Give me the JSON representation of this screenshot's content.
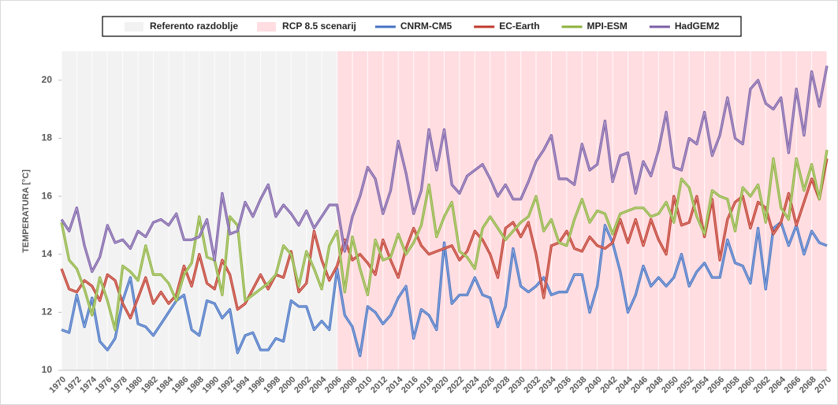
{
  "chart_data": {
    "type": "line",
    "y_label": "TEMPERATURA [°C]",
    "regions": [
      {
        "name": "Referento razdoblje",
        "color": "#f2f2f2",
        "start": 1970,
        "end": 2006
      },
      {
        "name": "RCP 8.5 scenarij",
        "color": "#ffdde1",
        "start": 2006,
        "end": 2070
      }
    ],
    "x": [
      1970,
      1971,
      1972,
      1973,
      1974,
      1975,
      1976,
      1977,
      1978,
      1979,
      1980,
      1981,
      1982,
      1983,
      1984,
      1985,
      1986,
      1987,
      1988,
      1989,
      1990,
      1991,
      1992,
      1993,
      1994,
      1995,
      1996,
      1997,
      1998,
      1999,
      2000,
      2001,
      2002,
      2003,
      2004,
      2005,
      2006,
      2007,
      2008,
      2009,
      2010,
      2011,
      2012,
      2013,
      2014,
      2015,
      2016,
      2017,
      2018,
      2019,
      2020,
      2021,
      2022,
      2023,
      2024,
      2025,
      2026,
      2027,
      2028,
      2029,
      2030,
      2031,
      2032,
      2033,
      2034,
      2035,
      2036,
      2037,
      2038,
      2039,
      2040,
      2041,
      2042,
      2043,
      2044,
      2045,
      2046,
      2047,
      2048,
      2049,
      2050,
      2051,
      2052,
      2053,
      2054,
      2055,
      2056,
      2057,
      2058,
      2059,
      2060,
      2061,
      2062,
      2063,
      2064,
      2065,
      2066,
      2067,
      2068,
      2069,
      2070
    ],
    "series": [
      {
        "name": "CNRM-CM5",
        "color": "#4472c4",
        "values": [
          11.4,
          11.3,
          12.6,
          11.5,
          12.5,
          11.0,
          10.7,
          11.1,
          12.4,
          13.2,
          11.6,
          11.5,
          11.2,
          11.6,
          12.0,
          12.4,
          12.6,
          11.4,
          11.2,
          12.4,
          12.3,
          11.8,
          12.1,
          10.6,
          11.2,
          11.3,
          10.7,
          10.7,
          11.1,
          11.0,
          12.4,
          12.2,
          12.2,
          11.4,
          11.7,
          11.4,
          13.5,
          11.9,
          11.5,
          10.5,
          12.2,
          12.0,
          11.6,
          11.9,
          12.5,
          12.9,
          11.1,
          12.1,
          11.9,
          11.4,
          14.4,
          12.3,
          12.6,
          12.6,
          13.2,
          12.6,
          12.5,
          11.5,
          12.2,
          14.2,
          12.9,
          12.7,
          12.9,
          13.2,
          12.6,
          12.7,
          12.7,
          13.3,
          13.3,
          12.0,
          12.9,
          15.0,
          14.4,
          13.4,
          12.0,
          12.6,
          13.6,
          12.9,
          13.2,
          12.9,
          13.2,
          14.0,
          12.9,
          13.4,
          13.7,
          13.2,
          13.2,
          14.5,
          13.7,
          13.6,
          13.0,
          14.9,
          12.8,
          14.9,
          15.1,
          14.3,
          15.0,
          14.0,
          14.8,
          14.4,
          14.3
        ]
      },
      {
        "name": "EC-Earth",
        "color": "#c0392b",
        "values": [
          13.5,
          12.8,
          12.7,
          13.1,
          12.9,
          12.4,
          13.3,
          13.1,
          12.3,
          11.8,
          12.5,
          13.2,
          12.3,
          12.7,
          12.3,
          12.6,
          13.6,
          12.9,
          14.0,
          13.0,
          12.8,
          13.8,
          13.3,
          12.1,
          12.3,
          12.8,
          13.3,
          12.8,
          13.3,
          13.2,
          14.1,
          12.7,
          13.0,
          14.8,
          13.8,
          13.1,
          13.6,
          14.5,
          13.8,
          14.0,
          13.7,
          13.3,
          14.5,
          13.8,
          13.2,
          14.2,
          14.9,
          14.3,
          14.0,
          14.1,
          14.2,
          14.3,
          13.8,
          14.1,
          14.8,
          14.5,
          14.0,
          13.2,
          14.9,
          15.1,
          14.6,
          15.1,
          14.0,
          12.5,
          14.3,
          14.4,
          14.8,
          14.2,
          14.1,
          14.6,
          14.3,
          14.2,
          14.4,
          15.2,
          14.4,
          15.2,
          14.3,
          15.2,
          14.5,
          14.0,
          16.0,
          15.0,
          15.1,
          16.0,
          14.6,
          15.9,
          13.8,
          15.2,
          15.8,
          16.0,
          14.9,
          15.8,
          15.6,
          14.7,
          15.1,
          16.1,
          15.0,
          15.8,
          16.6,
          15.9,
          17.3
        ]
      },
      {
        "name": "MPI-ESM",
        "color": "#8db23c",
        "values": [
          15.1,
          13.8,
          13.5,
          12.8,
          11.9,
          13.2,
          12.4,
          11.4,
          13.6,
          13.4,
          13.1,
          14.3,
          13.3,
          13.3,
          13.0,
          12.4,
          13.3,
          13.7,
          15.3,
          13.9,
          13.8,
          12.6,
          15.3,
          15.0,
          12.4,
          12.6,
          12.8,
          13.0,
          13.3,
          14.3,
          14.0,
          12.9,
          14.1,
          13.5,
          12.8,
          14.3,
          14.8,
          12.7,
          14.6,
          13.5,
          12.6,
          14.5,
          13.8,
          13.9,
          14.7,
          14.0,
          14.4,
          15.0,
          16.4,
          14.6,
          15.3,
          15.8,
          14.1,
          13.9,
          13.5,
          14.9,
          15.3,
          14.9,
          14.5,
          14.8,
          15.1,
          15.3,
          16.0,
          14.8,
          15.2,
          14.4,
          14.3,
          15.2,
          15.9,
          15.1,
          15.5,
          15.4,
          14.7,
          15.4,
          15.5,
          15.6,
          15.6,
          15.3,
          15.4,
          15.8,
          15.1,
          16.6,
          16.3,
          15.3,
          14.7,
          16.2,
          16.0,
          15.9,
          14.8,
          16.3,
          16.0,
          16.4,
          15.1,
          17.3,
          15.6,
          15.2,
          17.3,
          16.2,
          17.1,
          15.9,
          17.6
        ]
      },
      {
        "name": "HadGEM2",
        "color": "#7b5ea7",
        "values": [
          15.2,
          14.8,
          15.6,
          14.3,
          13.4,
          13.9,
          15.0,
          14.4,
          14.5,
          14.2,
          14.8,
          14.6,
          15.1,
          15.2,
          15.0,
          15.4,
          14.5,
          14.5,
          14.6,
          15.2,
          13.8,
          16.1,
          14.7,
          14.8,
          15.8,
          15.3,
          15.9,
          16.4,
          15.3,
          15.7,
          15.4,
          15.0,
          15.5,
          14.9,
          15.3,
          15.7,
          15.7,
          14.1,
          15.3,
          16.0,
          17.0,
          16.6,
          15.4,
          16.2,
          17.9,
          16.8,
          15.4,
          16.2,
          18.3,
          16.9,
          18.3,
          16.4,
          16.1,
          16.7,
          16.9,
          17.1,
          16.6,
          16.0,
          16.4,
          15.9,
          15.9,
          16.5,
          17.2,
          17.6,
          18.1,
          16.6,
          16.6,
          16.4,
          17.8,
          16.9,
          17.1,
          18.6,
          16.5,
          17.4,
          17.5,
          16.1,
          17.2,
          16.7,
          17.6,
          18.9,
          17.0,
          16.9,
          18.0,
          17.8,
          18.9,
          17.4,
          18.1,
          19.4,
          18.0,
          17.8,
          19.7,
          20.0,
          19.2,
          19.0,
          19.4,
          17.5,
          19.7,
          18.1,
          20.3,
          19.1,
          20.5
        ]
      }
    ],
    "xlim": [
      1970,
      2070
    ],
    "xticks": [
      1970,
      1972,
      1974,
      1976,
      1978,
      1980,
      1982,
      1984,
      1986,
      1988,
      1990,
      1992,
      1994,
      1996,
      1998,
      2000,
      2002,
      2004,
      2006,
      2008,
      2010,
      2012,
      2014,
      2016,
      2018,
      2020,
      2022,
      2024,
      2026,
      2028,
      2030,
      2032,
      2034,
      2036,
      2038,
      2040,
      2042,
      2044,
      2046,
      2048,
      2050,
      2052,
      2054,
      2056,
      2058,
      2060,
      2062,
      2064,
      2066,
      2068,
      2070
    ],
    "ylim": [
      10,
      21
    ],
    "yticks": [
      10,
      12,
      14,
      16,
      18,
      20
    ],
    "legend": "top"
  }
}
